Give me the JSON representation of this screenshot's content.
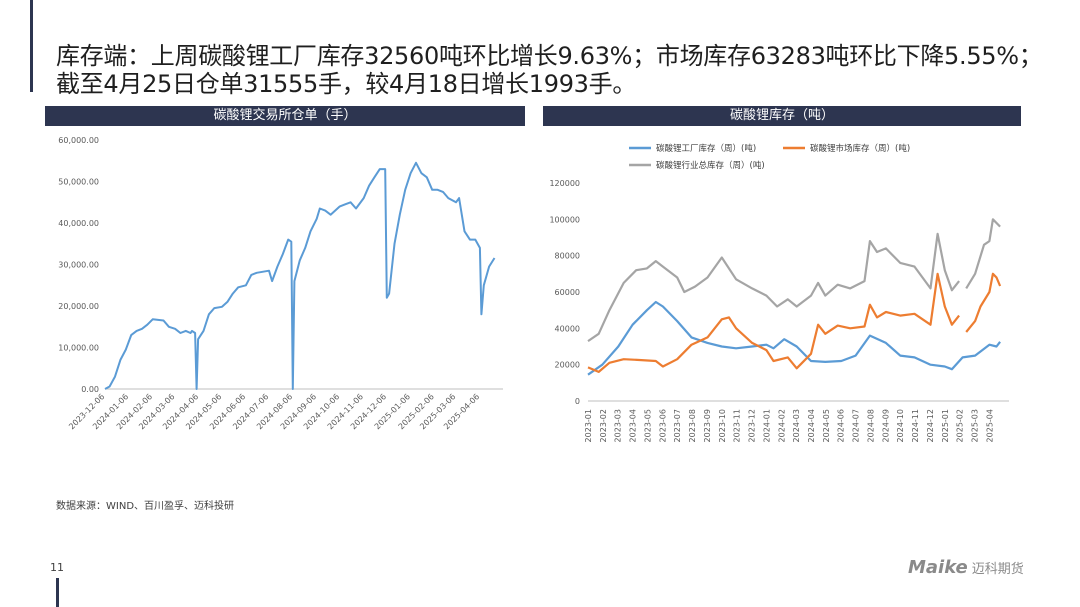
{
  "headline": "库存端：上周碳酸锂工厂库存32560吨环比增长9.63%；市场库存63283吨环比下降5.55%；截至4月25日仓单31555手，较4月18日增长1993手。",
  "source": "数据来源：WIND、百川盈孚、迈科投研",
  "page_number": "11",
  "logo": {
    "en": "Maike",
    "cn": "迈科期货"
  },
  "colors": {
    "header_bg": "#2d3550",
    "factory": "#5b9bd5",
    "market": "#ed7d31",
    "total": "#a5a5a5",
    "warrant": "#5b9bd5"
  },
  "chart_data": [
    {
      "type": "line",
      "title": "碳酸锂交易所仓单（手）",
      "ylim": [
        0,
        60000
      ],
      "yticks": [
        "0.00",
        "10,000.00",
        "20,000.00",
        "30,000.00",
        "40,000.00",
        "50,000.00",
        "60,000.00"
      ],
      "xticks": [
        "2023-12-06",
        "2024-01-06",
        "2024-02-06",
        "2024-03-06",
        "2024-04-06",
        "2024-05-06",
        "2024-06-06",
        "2024-07-06",
        "2024-08-06",
        "2024-09-06",
        "2024-10-06",
        "2024-11-06",
        "2024-12-06",
        "2025-01-06",
        "2025-02-06",
        "2025-03-06",
        "2025-04-06"
      ],
      "series": [
        {
          "color": "#5b9bd5",
          "points": [
            [
              "2023-12-06",
              0
            ],
            [
              "2023-12-12",
              600
            ],
            [
              "2023-12-19",
              3000
            ],
            [
              "2023-12-26",
              7000
            ],
            [
              "2024-01-02",
              9500
            ],
            [
              "2024-01-09",
              13000
            ],
            [
              "2024-01-16",
              14000
            ],
            [
              "2024-01-23",
              14500
            ],
            [
              "2024-01-30",
              15500
            ],
            [
              "2024-02-06",
              16800
            ],
            [
              "2024-02-20",
              16500
            ],
            [
              "2024-02-27",
              15000
            ],
            [
              "2024-03-06",
              14500
            ],
            [
              "2024-03-13",
              13500
            ],
            [
              "2024-03-20",
              14000
            ],
            [
              "2024-03-26",
              13500
            ],
            [
              "2024-03-28",
              14000
            ],
            [
              "2024-04-01",
              13500
            ],
            [
              "2024-04-03",
              0
            ],
            [
              "2024-04-05",
              12000
            ],
            [
              "2024-04-12",
              14000
            ],
            [
              "2024-04-19",
              18000
            ],
            [
              "2024-04-26",
              19500
            ],
            [
              "2024-05-06",
              19800
            ],
            [
              "2024-05-13",
              21000
            ],
            [
              "2024-05-20",
              23000
            ],
            [
              "2024-05-27",
              24500
            ],
            [
              "2024-06-06",
              25000
            ],
            [
              "2024-06-13",
              27500
            ],
            [
              "2024-06-20",
              28000
            ],
            [
              "2024-07-06",
              28500
            ],
            [
              "2024-07-10",
              26000
            ],
            [
              "2024-07-17",
              29500
            ],
            [
              "2024-07-24",
              32500
            ],
            [
              "2024-07-31",
              36000
            ],
            [
              "2024-08-04",
              35500
            ],
            [
              "2024-08-06",
              0
            ],
            [
              "2024-08-08",
              26000
            ],
            [
              "2024-08-15",
              31000
            ],
            [
              "2024-08-22",
              34000
            ],
            [
              "2024-08-29",
              38000
            ],
            [
              "2024-09-06",
              41000
            ],
            [
              "2024-09-10",
              43500
            ],
            [
              "2024-09-17",
              43000
            ],
            [
              "2024-09-24",
              42000
            ],
            [
              "2024-10-06",
              44000
            ],
            [
              "2024-10-13",
              44500
            ],
            [
              "2024-10-20",
              45000
            ],
            [
              "2024-10-27",
              43500
            ],
            [
              "2024-11-06",
              46000
            ],
            [
              "2024-11-13",
              49000
            ],
            [
              "2024-11-20",
              51000
            ],
            [
              "2024-11-27",
              53000
            ],
            [
              "2024-12-04",
              53000
            ],
            [
              "2024-12-06",
              22000
            ],
            [
              "2024-12-09",
              23000
            ],
            [
              "2024-12-16",
              35000
            ],
            [
              "2024-12-23",
              42000
            ],
            [
              "2024-12-30",
              48000
            ],
            [
              "2025-01-06",
              52000
            ],
            [
              "2025-01-13",
              54500
            ],
            [
              "2025-01-20",
              52000
            ],
            [
              "2025-01-27",
              51000
            ],
            [
              "2025-02-03",
              48000
            ],
            [
              "2025-02-10",
              48000
            ],
            [
              "2025-02-17",
              47500
            ],
            [
              "2025-02-24",
              46000
            ],
            [
              "2025-03-06",
              45000
            ],
            [
              "2025-03-10",
              46000
            ],
            [
              "2025-03-17",
              38000
            ],
            [
              "2025-03-24",
              36000
            ],
            [
              "2025-03-31",
              36000
            ],
            [
              "2025-04-06",
              34000
            ],
            [
              "2025-04-08",
              18000
            ],
            [
              "2025-04-11",
              25000
            ],
            [
              "2025-04-18",
              29500
            ],
            [
              "2025-04-25",
              31555
            ]
          ]
        }
      ]
    },
    {
      "type": "line",
      "title": "碳酸锂库存（吨）",
      "ylim": [
        0,
        120000
      ],
      "yticks": [
        "0",
        "20000",
        "40000",
        "60000",
        "80000",
        "100000",
        "120000"
      ],
      "xticks": [
        "2023-01",
        "2023-02",
        "2023-03",
        "2023-04",
        "2023-05",
        "2023-06",
        "2023-07",
        "2023-08",
        "2023-09",
        "2023-10",
        "2023-11",
        "2023-12",
        "2024-01",
        "2024-02",
        "2024-03",
        "2024-04",
        "2024-05",
        "2024-06",
        "2024-07",
        "2024-08",
        "2024-09",
        "2024-10",
        "2024-11",
        "2024-12",
        "2025-01",
        "2025-02",
        "2025-03",
        "2025-04"
      ],
      "legend": [
        "碳酸锂工厂库存（周）(吨)",
        "碳酸锂市场库存（周）(吨)",
        "碳酸锂行业总库存（周）(吨)"
      ],
      "series": [
        {
          "name": "碳酸锂工厂库存（周）(吨)",
          "color": "#5b9bd5",
          "points": [
            [
              2023.0,
              14500
            ],
            [
              2023.08,
              20000
            ],
            [
              2023.17,
              30000
            ],
            [
              2023.25,
              42000
            ],
            [
              2023.33,
              50000
            ],
            [
              2023.38,
              54500
            ],
            [
              2023.42,
              52000
            ],
            [
              2023.5,
              44000
            ],
            [
              2023.58,
              35000
            ],
            [
              2023.67,
              32000
            ],
            [
              2023.75,
              30000
            ],
            [
              2023.83,
              29000
            ],
            [
              2023.92,
              30000
            ],
            [
              2024.0,
              31000
            ],
            [
              2024.04,
              29000
            ],
            [
              2024.1,
              34000
            ],
            [
              2024.17,
              30000
            ],
            [
              2024.25,
              22000
            ],
            [
              2024.33,
              21500
            ],
            [
              2024.42,
              22000
            ],
            [
              2024.5,
              25000
            ],
            [
              2024.58,
              36000
            ],
            [
              2024.67,
              32000
            ],
            [
              2024.75,
              25000
            ],
            [
              2024.83,
              24000
            ],
            [
              2024.92,
              20000
            ],
            [
              2025.0,
              19000
            ],
            [
              2025.04,
              17500
            ],
            [
              2025.1,
              24000
            ],
            [
              2025.17,
              25000
            ],
            [
              2025.25,
              31000
            ],
            [
              2025.29,
              30000
            ],
            [
              2025.31,
              32560
            ]
          ]
        },
        {
          "name": "碳酸锂市场库存（周）(吨)",
          "color": "#ed7d31",
          "points": [
            [
              2023.0,
              18500
            ],
            [
              2023.06,
              16000
            ],
            [
              2023.12,
              21000
            ],
            [
              2023.2,
              23000
            ],
            [
              2023.3,
              22500
            ],
            [
              2023.38,
              22000
            ],
            [
              2023.42,
              19000
            ],
            [
              2023.5,
              23000
            ],
            [
              2023.58,
              31000
            ],
            [
              2023.67,
              35000
            ],
            [
              2023.75,
              45000
            ],
            [
              2023.79,
              46000
            ],
            [
              2023.83,
              40000
            ],
            [
              2023.92,
              32000
            ],
            [
              2024.0,
              28000
            ],
            [
              2024.04,
              22000
            ],
            [
              2024.12,
              24000
            ],
            [
              2024.17,
              18000
            ],
            [
              2024.25,
              26000
            ],
            [
              2024.29,
              42000
            ],
            [
              2024.33,
              37000
            ],
            [
              2024.4,
              41500
            ],
            [
              2024.47,
              40000
            ],
            [
              2024.55,
              41000
            ],
            [
              2024.58,
              53000
            ],
            [
              2024.62,
              46000
            ],
            [
              2024.67,
              49000
            ],
            [
              2024.75,
              47000
            ],
            [
              2024.83,
              48000
            ],
            [
              2024.92,
              42000
            ],
            [
              2024.96,
              70000
            ],
            [
              2025.0,
              52000
            ],
            [
              2025.04,
              42000
            ],
            [
              2025.08,
              47000
            ],
            null,
            [
              2025.12,
              38000
            ],
            [
              2025.17,
              44000
            ],
            [
              2025.2,
              52000
            ],
            [
              2025.25,
              60000
            ],
            [
              2025.27,
              70000
            ],
            [
              2025.29,
              68000
            ],
            [
              2025.31,
              63283
            ]
          ]
        },
        {
          "name": "碳酸锂行业总库存（周）(吨)",
          "color": "#a5a5a5",
          "points": [
            [
              2023.0,
              33000
            ],
            [
              2023.06,
              37000
            ],
            [
              2023.12,
              50000
            ],
            [
              2023.2,
              65000
            ],
            [
              2023.27,
              72000
            ],
            [
              2023.33,
              73000
            ],
            [
              2023.38,
              77000
            ],
            [
              2023.42,
              74000
            ],
            [
              2023.5,
              68000
            ],
            [
              2023.54,
              60000
            ],
            [
              2023.6,
              63000
            ],
            [
              2023.67,
              68000
            ],
            [
              2023.75,
              79000
            ],
            [
              2023.83,
              67000
            ],
            [
              2023.92,
              62000
            ],
            [
              2024.0,
              58000
            ],
            [
              2024.06,
              52000
            ],
            [
              2024.12,
              56000
            ],
            [
              2024.17,
              52000
            ],
            [
              2024.25,
              58000
            ],
            [
              2024.29,
              65000
            ],
            [
              2024.33,
              58000
            ],
            [
              2024.4,
              64000
            ],
            [
              2024.47,
              62000
            ],
            [
              2024.55,
              66000
            ],
            [
              2024.58,
              88000
            ],
            [
              2024.62,
              82000
            ],
            [
              2024.67,
              84000
            ],
            [
              2024.75,
              76000
            ],
            [
              2024.83,
              74000
            ],
            [
              2024.92,
              62000
            ],
            [
              2024.96,
              92000
            ],
            [
              2025.0,
              72000
            ],
            [
              2025.04,
              61000
            ],
            [
              2025.08,
              66000
            ],
            null,
            [
              2025.12,
              62000
            ],
            [
              2025.17,
              70000
            ],
            [
              2025.22,
              86000
            ],
            [
              2025.25,
              88000
            ],
            [
              2025.27,
              100000
            ],
            [
              2025.31,
              96000
            ]
          ]
        }
      ]
    }
  ]
}
